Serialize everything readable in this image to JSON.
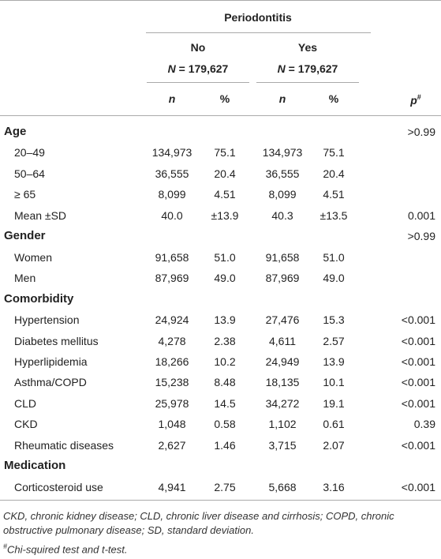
{
  "header": {
    "group": "Periodontitis",
    "arms": [
      {
        "label": "No",
        "n_symbol": "N",
        "n_rest": "= 179,627"
      },
      {
        "label": "Yes",
        "n_symbol": "N",
        "n_rest": "= 179,627"
      }
    ],
    "columns": [
      "n",
      "%",
      "n",
      "%"
    ],
    "p_symbol": "p",
    "p_marker": "#"
  },
  "table": {
    "sections": [
      {
        "title": "Age",
        "p": ">0.99",
        "rows": [
          [
            "20–49",
            "134,973",
            "75.1",
            "134,973",
            "75.1"
          ],
          [
            "50–64",
            "36,555",
            "20.4",
            "36,555",
            "20.4"
          ],
          [
            "≥ 65",
            "8,099",
            "4.51",
            "8,099",
            "4.51"
          ],
          [
            "Mean ±SD",
            "40.0",
            "±13.9",
            "40.3",
            "±13.5",
            "0.001"
          ]
        ]
      },
      {
        "title": "Gender",
        "p": ">0.99",
        "rows": [
          [
            "Women",
            "91,658",
            "51.0",
            "91,658",
            "51.0"
          ],
          [
            "Men",
            "87,969",
            "49.0",
            "87,969",
            "49.0"
          ]
        ]
      },
      {
        "title": "Comorbidity",
        "rows": [
          [
            "Hypertension",
            "24,924",
            "13.9",
            "27,476",
            "15.3",
            "<0.001"
          ],
          [
            "Diabetes mellitus",
            "4,278",
            "2.38",
            "4,611",
            "2.57",
            "<0.001"
          ],
          [
            "Hyperlipidemia",
            "18,266",
            "10.2",
            "24,949",
            "13.9",
            "<0.001"
          ],
          [
            "Asthma/COPD",
            "15,238",
            "8.48",
            "18,135",
            "10.1",
            "<0.001"
          ],
          [
            "CLD",
            "25,978",
            "14.5",
            "34,272",
            "19.1",
            "<0.001"
          ],
          [
            "CKD",
            "1,048",
            "0.58",
            "1,102",
            "0.61",
            "0.39"
          ],
          [
            "Rheumatic diseases",
            "2,627",
            "1.46",
            "3,715",
            "2.07",
            "<0.001"
          ]
        ]
      },
      {
        "title": "Medication",
        "rows": [
          [
            "Corticosteroid use",
            "4,941",
            "2.75",
            "5,668",
            "3.16",
            "<0.001"
          ]
        ]
      }
    ]
  },
  "footnotes": {
    "abbreviations": "CKD, chronic kidney disease; CLD, chronic liver disease and cirrhosis; COPD, chronic obstructive pulmonary disease; SD, standard deviation.",
    "test_marker": "#",
    "test": "Chi-squired test and t-test."
  }
}
